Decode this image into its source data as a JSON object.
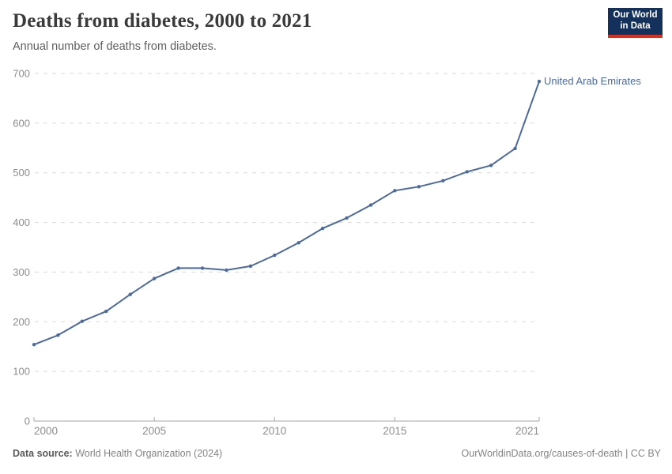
{
  "header": {
    "title": "Deaths from diabetes, 2000 to 2021",
    "subtitle": "Annual number of deaths from diabetes.",
    "logo": {
      "line1": "Our World",
      "line2": "in Data"
    }
  },
  "chart_data": {
    "type": "line",
    "title": "Deaths from diabetes, 2000 to 2021",
    "x": [
      2000,
      2001,
      2002,
      2003,
      2004,
      2005,
      2006,
      2007,
      2008,
      2009,
      2010,
      2011,
      2012,
      2013,
      2014,
      2015,
      2016,
      2017,
      2018,
      2019,
      2020,
      2021
    ],
    "series": [
      {
        "name": "United Arab Emirates",
        "values": [
          154,
          173,
          201,
          221,
          255,
          287,
          308,
          308,
          304,
          312,
          334,
          359,
          388,
          409,
          435,
          464,
          472,
          484,
          502,
          515,
          549,
          684
        ]
      }
    ],
    "ylim": [
      0,
      700
    ],
    "yticks": [
      0,
      100,
      200,
      300,
      400,
      500,
      600,
      700
    ],
    "xticks": [
      2000,
      2005,
      2010,
      2015,
      2021
    ],
    "xlabel": "",
    "ylabel": "",
    "grid": "horizontal-dashed",
    "legend": "entity-label-right-of-last-point"
  },
  "colors": {
    "line": "#4C6A9C",
    "entity_label": "#4C6A9C",
    "grid": "#dadada",
    "axis": "#a6a6a6",
    "tick_label": "#8c8c8c",
    "logo_bg": "#13315A",
    "logo_red": "#D5311E"
  },
  "footer": {
    "source_label": "Data source:",
    "source_value": " World Health Organization (2024)",
    "right_url": "OurWorldinData.org/causes-of-death",
    "right_separator": " | ",
    "right_license": "CC BY"
  }
}
